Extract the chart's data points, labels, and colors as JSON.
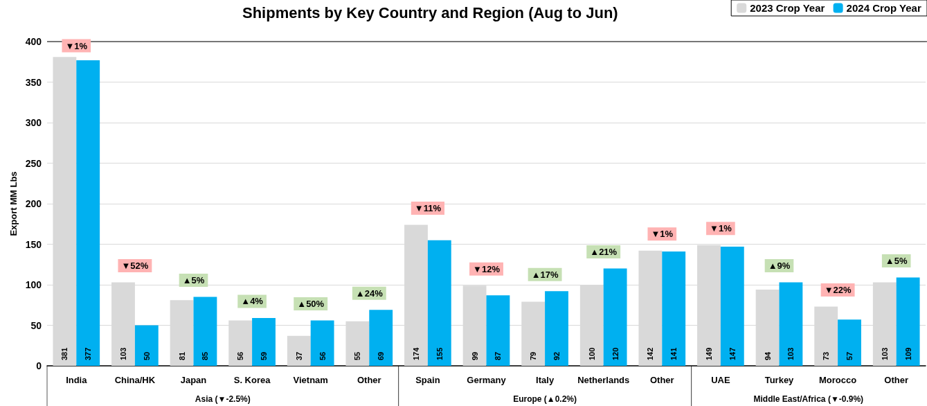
{
  "chart_data": {
    "type": "bar",
    "title": "Shipments by Key Country and Region (Aug to Jun)",
    "ylabel": "Export MM Lbs",
    "categories": [
      "India",
      "China/HK",
      "Japan",
      "S. Korea",
      "Vietnam",
      "Other",
      "Spain",
      "Germany",
      "Italy",
      "Netherlands",
      "Other",
      "UAE",
      "Turkey",
      "Morocco",
      "Other"
    ],
    "series": [
      {
        "name": "2023 Crop Year",
        "color": "#d9d9d9",
        "values": [
          381,
          103,
          81,
          56,
          37,
          55,
          174,
          99,
          79,
          100,
          142,
          149,
          94,
          73,
          103
        ]
      },
      {
        "name": "2024 Crop Year",
        "color": "#00b0f0",
        "values": [
          377,
          50,
          85,
          59,
          56,
          69,
          155,
          87,
          92,
          120,
          141,
          147,
          103,
          57,
          109
        ]
      }
    ],
    "ylim": [
      0,
      400
    ],
    "yticks": [
      0,
      50,
      100,
      150,
      200,
      250,
      300,
      350,
      400
    ],
    "grid": "y",
    "legend": "top right",
    "data_labels": true,
    "annotations": [
      "▼1%",
      "▼52%",
      "▲5%",
      "▲4%",
      "▲50%",
      "▲24%",
      "▼11%",
      "▼12%",
      "▲17%",
      "▲21%",
      "▼1%",
      "▼1%",
      "▲9%",
      "▼22%",
      "▲5%",
      "Asia (▼-2.5%)",
      "Europe (▲0.2%)",
      "Middle East/Africa (▼-0.9%)"
    ]
  }
}
